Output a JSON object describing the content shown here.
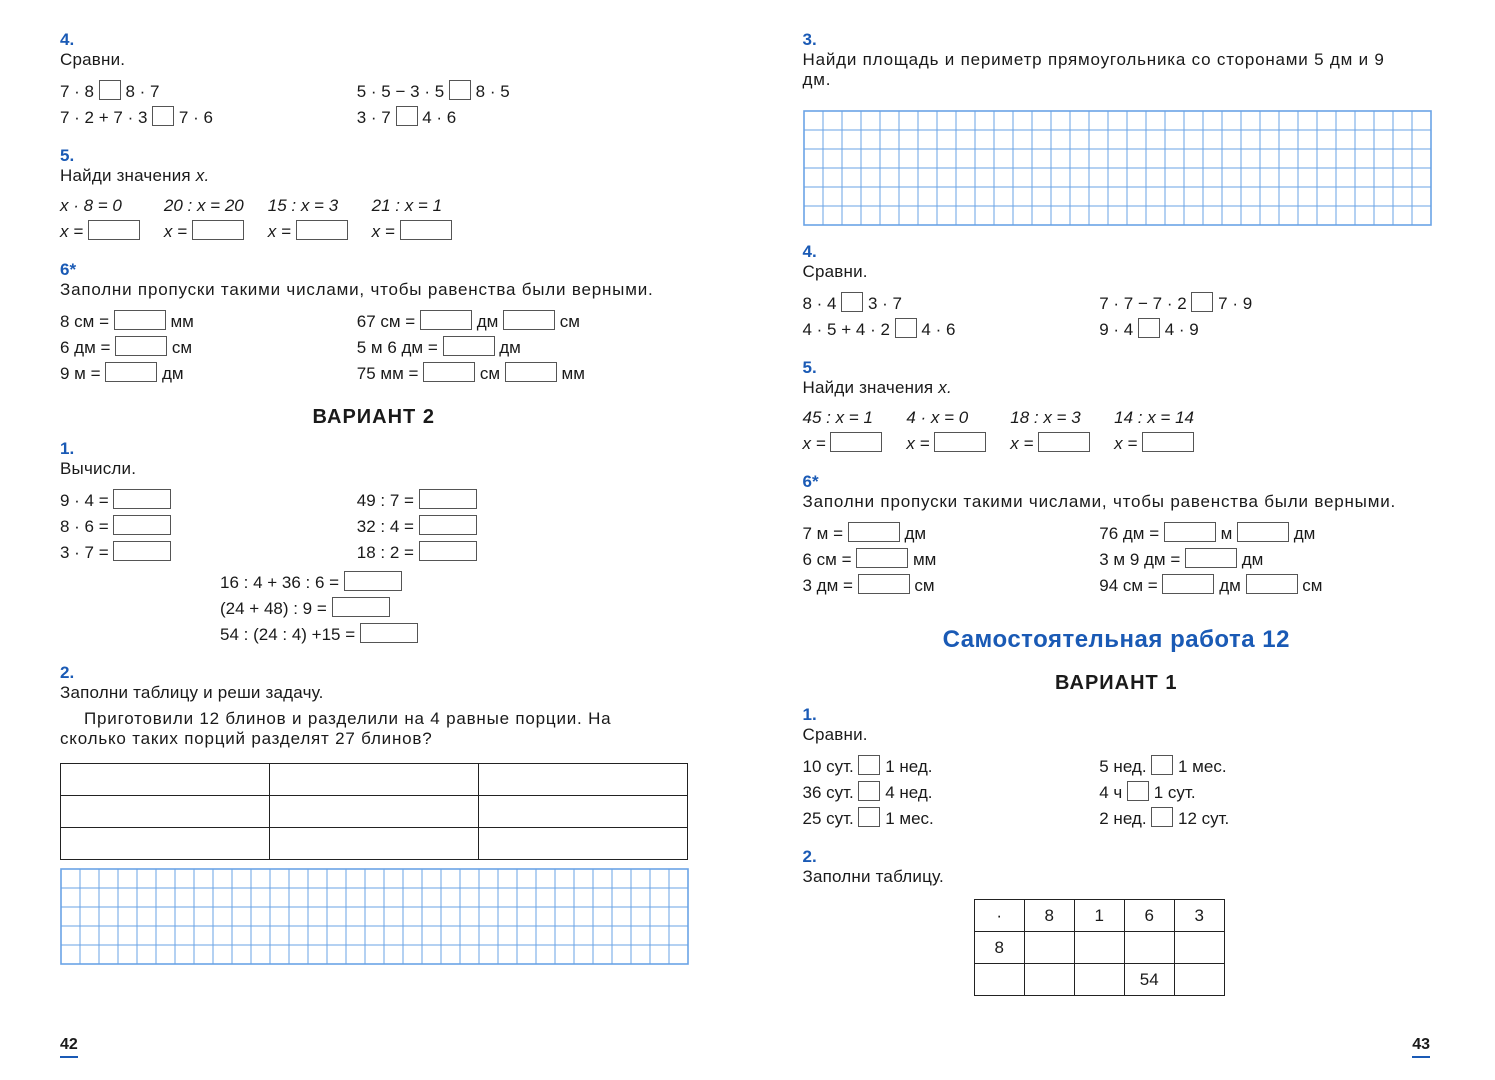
{
  "colors": {
    "accent": "#1a5ab5",
    "grid_line": "#6aa3e6",
    "border": "#222222",
    "text": "#1a1a1a",
    "bg": "#ffffff"
  },
  "left": {
    "page_number": "42",
    "t4": {
      "num": "4.",
      "title": "Сравни.",
      "l1a": "7 · 8",
      "l1b": "8 · 7",
      "l1c": "5 · 5 − 3 · 5",
      "l1d": "8 · 5",
      "l2a": "7 · 2 + 7 · 3",
      "l2b": "7 · 6",
      "l2c": "3 · 7",
      "l2d": "4 · 6"
    },
    "t5": {
      "num": "5.",
      "title": "Найди значения ",
      "title_var": "x.",
      "eqs": [
        {
          "top": "x · 8 = 0",
          "bot": "x ="
        },
        {
          "top": "20 : x = 20",
          "bot": "x ="
        },
        {
          "top": "15 : x = 3",
          "bot": "x ="
        },
        {
          "top": "21 : x = 1",
          "bot": "x ="
        }
      ]
    },
    "t6": {
      "num": "6",
      "title": "Заполни пропуски такими числами, чтобы равенства были верными.",
      "l": [
        "8 см =",
        "6 дм =",
        "9 м ="
      ],
      "lunit": [
        "мм",
        "см",
        "дм"
      ],
      "r1a": "67 см =",
      "r1u1": "дм",
      "r1u2": "см",
      "r2a": "5 м 6 дм =",
      "r2u": "дм",
      "r3a": "75 мм =",
      "r3u1": "см",
      "r3u2": "мм"
    },
    "variant_hdr": "ВАРИАНТ 2",
    "t1": {
      "num": "1.",
      "title": "Вычисли.",
      "left_col": [
        "9 · 4 =",
        "8 · 6 =",
        "3 · 7 ="
      ],
      "right_col": [
        "49 : 7 =",
        "32 : 4 =",
        "18 : 2 ="
      ],
      "long": [
        "16 : 4 + 36 : 6 =",
        "(24 + 48) : 9 =",
        "54 : (24 : 4) +15 ="
      ]
    },
    "t2": {
      "num": "2.",
      "title": "Заполни таблицу и реши задачу.",
      "text": "Приготовили 12 блинов и разделили на 4 равные порции. На сколько таких порций разделят 27 блинов?",
      "table": {
        "rows": 3,
        "cols": 3
      },
      "grid": {
        "rows": 5,
        "cols": 33,
        "cell": 19
      }
    }
  },
  "right": {
    "page_number": "43",
    "t3": {
      "num": "3.",
      "title": "Найди площадь и периметр прямоугольника со сторонами 5 дм и 9 дм.",
      "grid": {
        "rows": 6,
        "cols": 33,
        "cell": 19
      }
    },
    "t4": {
      "num": "4.",
      "title": "Сравни.",
      "l1a": "8 · 4",
      "l1b": "3 · 7",
      "l1c": "7 · 7 − 7 · 2",
      "l1d": "7 · 9",
      "l2a": "4 · 5 + 4 · 2",
      "l2b": "4 · 6",
      "l2c": "9 · 4",
      "l2d": "4 · 9"
    },
    "t5": {
      "num": "5.",
      "title": "Найди значения ",
      "title_var": "x.",
      "eqs": [
        {
          "top": "45 : x = 1",
          "bot": "x ="
        },
        {
          "top": "4 · x = 0",
          "bot": "x ="
        },
        {
          "top": "18 : x = 3",
          "bot": "x ="
        },
        {
          "top": "14 : x = 14",
          "bot": "x ="
        }
      ]
    },
    "t6": {
      "num": "6",
      "title": "Заполни пропуски такими числами, чтобы равенства были верными.",
      "l": [
        "7 м =",
        "6 см =",
        "3 дм ="
      ],
      "lunit": [
        "дм",
        "мм",
        "см"
      ],
      "r1a": "76 дм =",
      "r1u1": "м",
      "r1u2": "дм",
      "r2a": "3 м 9 дм =",
      "r2u": "дм",
      "r3a": "94 см =",
      "r3u1": "дм",
      "r3u2": "см"
    },
    "section_hdr": "Самостоятельная работа 12",
    "variant_hdr": "ВАРИАНТ 1",
    "t1b": {
      "num": "1.",
      "title": "Сравни.",
      "left_col": [
        "10 сут.",
        "36 сут.",
        "25 сут."
      ],
      "left_cmp": [
        "1 нед.",
        "4 нед.",
        "1 мес."
      ],
      "right_col": [
        "5 нед.",
        "4 ч",
        "2 нед."
      ],
      "right_cmp": [
        "1 мес.",
        "1 сут.",
        "12 сут."
      ]
    },
    "t2b": {
      "num": "2.",
      "title": "Заполни таблицу.",
      "table": {
        "header": [
          "·",
          "8",
          "1",
          "6",
          "3"
        ],
        "row2_first": "8",
        "row3_val_col": 3,
        "row3_val": "54"
      }
    }
  }
}
